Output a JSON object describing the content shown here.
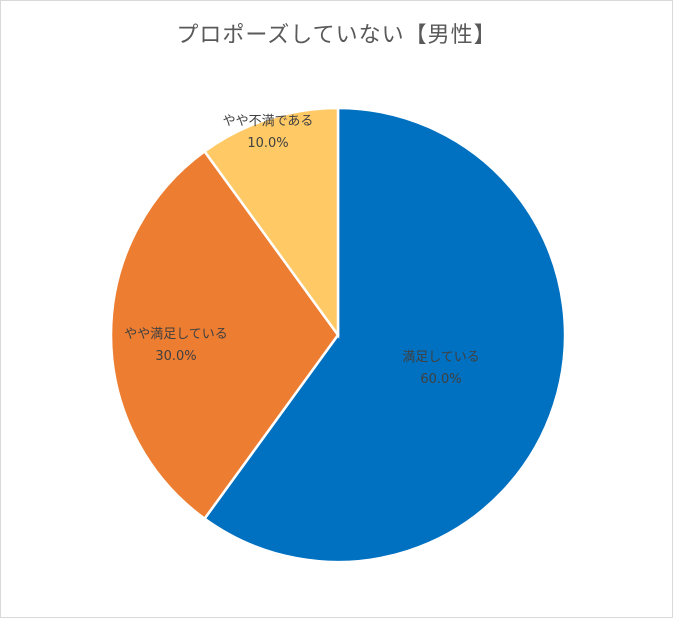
{
  "chart_data": {
    "type": "pie",
    "title": "プロポーズしていない【男性】",
    "slices": [
      {
        "label": "満足している",
        "value": 60.0,
        "value_label": "60.0%",
        "color": "#0070c0"
      },
      {
        "label": "やや満足している",
        "value": 30.0,
        "value_label": "30.0%",
        "color": "#ed7d31"
      },
      {
        "label": "やや不満である",
        "value": 10.0,
        "value_label": "10.0%",
        "color": "#ffc966"
      }
    ],
    "start_angle_deg": 0,
    "direction": "clockwise",
    "data_labels": true,
    "legend": "none"
  }
}
